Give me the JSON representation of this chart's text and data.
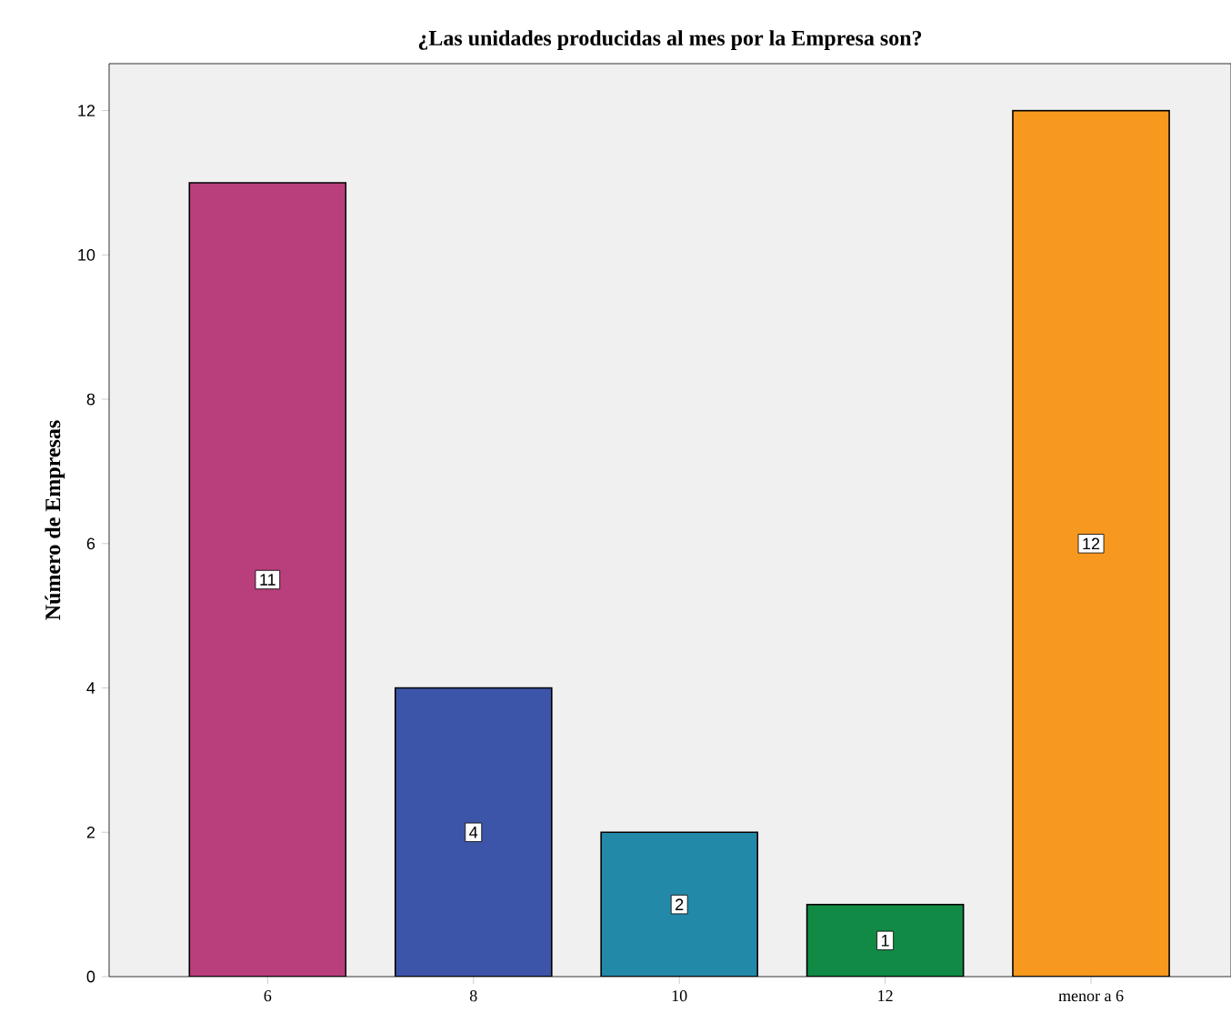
{
  "chart_data": {
    "type": "bar",
    "title": "¿Las unidades producidas al mes por la Empresa son?",
    "ylabel": "Número de Empresas",
    "categories": [
      "6",
      "8",
      "10",
      "12",
      "menor a 6"
    ],
    "values": [
      11,
      4,
      2,
      1,
      12
    ],
    "colors": [
      "#b93e7c",
      "#3d55a8",
      "#2389a9",
      "#118a45",
      "#f7981f"
    ],
    "ylim": [
      0,
      12.65
    ],
    "yticks": [
      0,
      2,
      4,
      6,
      8,
      10,
      12
    ],
    "data_labels": true
  }
}
